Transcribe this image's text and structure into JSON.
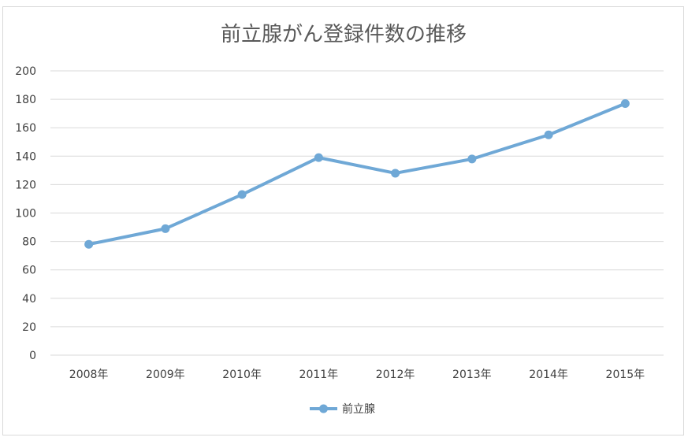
{
  "chart_data": {
    "type": "line",
    "title": "前立腺がん登録件数の推移",
    "categories": [
      "2008年",
      "2009年",
      "2010年",
      "2011年",
      "2012年",
      "2013年",
      "2014年",
      "2015年"
    ],
    "series": [
      {
        "name": "前立腺",
        "values": [
          78,
          89,
          113,
          139,
          128,
          138,
          155,
          177
        ],
        "color": "#6fa8d6"
      }
    ],
    "ylim": [
      0,
      200
    ],
    "yticks": [
      0,
      20,
      40,
      60,
      80,
      100,
      120,
      140,
      160,
      180,
      200
    ],
    "grid": true,
    "legend_position": "bottom"
  }
}
